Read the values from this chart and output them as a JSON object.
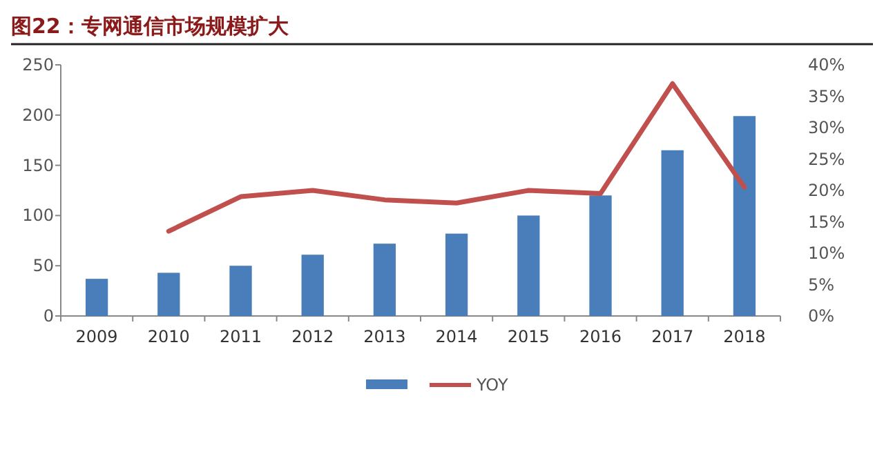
{
  "chart_data": {
    "type": "bar",
    "title": "图22：专网通信市场规模扩大",
    "categories": [
      "2009",
      "2010",
      "2011",
      "2012",
      "2013",
      "2014",
      "2015",
      "2016",
      "2017",
      "2018"
    ],
    "series": [
      {
        "color": "#4a7ebb",
        "values": [
          37,
          43,
          50,
          61,
          72,
          82,
          100,
          120,
          165,
          199
        ]
      },
      {
        "type": "line",
        "name": "YOY",
        "color": "#c0504d",
        "axis": "y2",
        "values": [
          null,
          13.5,
          19,
          20,
          18.5,
          18,
          20,
          19.5,
          37,
          20.5
        ]
      }
    ],
    "ylim": [
      0,
      250
    ],
    "yticks": [
      0,
      50,
      100,
      150,
      200,
      250
    ],
    "y2lim": [
      0,
      40
    ],
    "y2ticks": [
      {
        "value": 0,
        "label": "0%"
      },
      {
        "value": 5,
        "label": "5%"
      },
      {
        "value": 10,
        "label": "10%"
      },
      {
        "value": 15,
        "label": "15%"
      },
      {
        "value": 20,
        "label": "20%"
      },
      {
        "value": 25,
        "label": "25%"
      },
      {
        "value": 30,
        "label": "30%"
      },
      {
        "value": 35,
        "label": "35%"
      },
      {
        "value": 40,
        "label": "40%"
      }
    ],
    "legend": "bottom"
  }
}
